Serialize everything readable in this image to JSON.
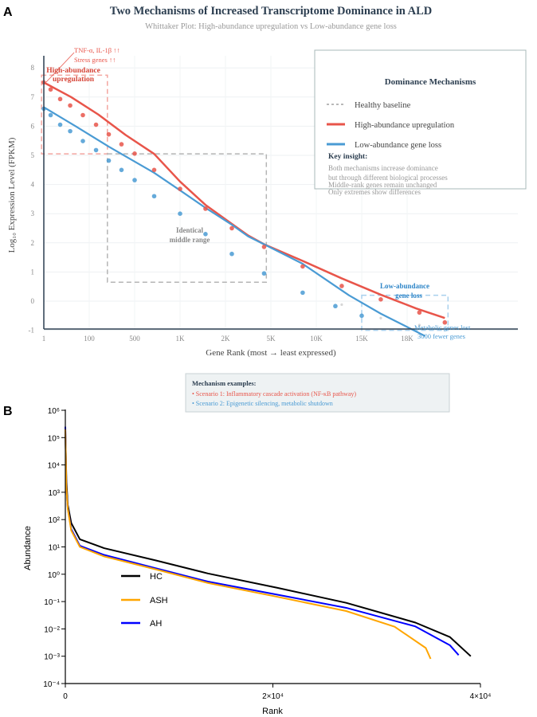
{
  "panel_labels": {
    "a": "A",
    "b": "B"
  },
  "chart_data": [
    {
      "type": "scatter",
      "title": "Two Mechanisms of Increased Transcriptome Dominance in ALD",
      "subtitle": "Whittaker Plot: High-abundance upregulation vs Low-abundance gene loss",
      "xlabel": "Gene Rank (most → least expressed)",
      "ylabel": "Log₁₀ Expression Level (FPKM)",
      "x_tick_labels": [
        "1",
        "100",
        "500",
        "1K",
        "2K",
        "5K",
        "10K",
        "15K",
        "18K"
      ],
      "y_ticks": [
        -1,
        0,
        1,
        2,
        3,
        4,
        5,
        6,
        7,
        8
      ],
      "ylim": [
        -1,
        8.6
      ],
      "grid": true,
      "legend": {
        "title": "Dominance Mechanisms",
        "placement": "top-right",
        "entries": [
          "Healthy baseline",
          "High-abundance upregulation",
          "Low-abundance gene loss"
        ],
        "insight_title": "Key insight:",
        "insight_lines": [
          "Both mechanisms increase dominance",
          "but through different biological processes",
          "Middle-rank genes remain unchanged",
          "Only extremes show differences"
        ]
      },
      "colors": {
        "upregulation": "#e8554a",
        "loss": "#4a9bd4",
        "baseline": "#a0a0a0"
      },
      "series": [
        {
          "name": "High-abundance upregulation",
          "line": [
            [
              0,
              7.5
            ],
            [
              0.6,
              7.0
            ],
            [
              1.2,
              6.4
            ],
            [
              1.8,
              5.7
            ],
            [
              2.43,
              5.05
            ],
            [
              3.0,
              4.1
            ],
            [
              3.56,
              3.3
            ],
            [
              4.14,
              2.65
            ],
            [
              4.5,
              2.25
            ],
            [
              4.85,
              1.95
            ],
            [
              5.7,
              1.38
            ],
            [
              6.56,
              0.78
            ],
            [
              7.42,
              0.22
            ],
            [
              8.2,
              -0.25
            ],
            [
              8.83,
              -0.58
            ]
          ],
          "points": [
            [
              0,
              7.5
            ],
            [
              0.15,
              7.26
            ],
            [
              0.36,
              6.93
            ],
            [
              0.58,
              6.71
            ],
            [
              0.86,
              6.38
            ],
            [
              1.15,
              6.05
            ],
            [
              1.43,
              5.72
            ],
            [
              1.71,
              5.38
            ],
            [
              2.0,
              5.06
            ],
            [
              2.43,
              4.5
            ],
            [
              3.0,
              3.85
            ],
            [
              3.56,
              3.17
            ],
            [
              4.14,
              2.5
            ],
            [
              4.85,
              1.86
            ],
            [
              5.7,
              1.19
            ],
            [
              6.56,
              0.52
            ],
            [
              7.42,
              0.06
            ],
            [
              8.27,
              -0.39
            ],
            [
              8.83,
              -0.73
            ]
          ]
        },
        {
          "name": "Low-abundance gene loss",
          "line": [
            [
              0,
              6.65
            ],
            [
              0.7,
              6.0
            ],
            [
              1.43,
              5.3
            ],
            [
              2.43,
              4.4
            ],
            [
              3.0,
              3.8
            ],
            [
              3.56,
              3.2
            ],
            [
              4.14,
              2.62
            ],
            [
              4.5,
              2.22
            ],
            [
              4.85,
              1.95
            ],
            [
              5.7,
              1.28
            ],
            [
              6.2,
              0.75
            ],
            [
              6.72,
              0.2
            ],
            [
              7.42,
              -0.43
            ],
            [
              8.4,
              -1.2
            ]
          ],
          "points": [
            [
              0,
              6.6
            ],
            [
              0.15,
              6.38
            ],
            [
              0.36,
              6.05
            ],
            [
              0.58,
              5.83
            ],
            [
              0.86,
              5.49
            ],
            [
              1.15,
              5.18
            ],
            [
              1.43,
              4.82
            ],
            [
              1.71,
              4.5
            ],
            [
              2.0,
              4.15
            ],
            [
              2.43,
              3.6
            ],
            [
              3.0,
              3.0
            ],
            [
              3.56,
              2.3
            ],
            [
              4.14,
              1.62
            ],
            [
              4.85,
              0.95
            ],
            [
              5.7,
              0.29
            ],
            [
              6.42,
              -0.17
            ],
            [
              7.0,
              -0.5
            ]
          ]
        },
        {
          "name": "Healthy baseline",
          "points": [
            [
              6.56,
              -0.12
            ],
            [
              7.42,
              -0.58
            ],
            [
              8.27,
              -0.82
            ]
          ]
        }
      ],
      "annotations": {
        "top_callout": [
          "TNF-α, IL-1β ↑↑",
          "Stress genes ↑↑"
        ],
        "high_label": [
          "High-abundance",
          "upregulation"
        ],
        "middle_label": [
          "Identical",
          "middle range"
        ],
        "low_label": [
          "Low-abundance",
          "gene loss"
        ],
        "low_callout": [
          "Metabolic genes lost",
          "3000 fewer genes"
        ]
      },
      "examples_box": {
        "title": "Mechanism examples:",
        "lines": [
          "• Scenario 1: Inflammatory cascade activation (NF-κB pathway)",
          "• Scenario 2: Epigenetic silencing, metabolic shutdown"
        ]
      }
    },
    {
      "type": "line",
      "xlabel": "Rank",
      "ylabel": "Abundance",
      "x_ticks": [
        0,
        20000,
        40000
      ],
      "x_tick_labels": [
        "0",
        "2×10⁴",
        "4×10⁴"
      ],
      "y_scale": "log",
      "ylim": [
        0.0001,
        1000000
      ],
      "y_tick_labels": [
        "10⁻⁴",
        "10⁻³",
        "10⁻²",
        "10⁻¹",
        "10⁰",
        "10¹",
        "10²",
        "10³",
        "10⁴",
        "10⁵",
        "10⁶"
      ],
      "grid": false,
      "legend": {
        "placement": "middle-left"
      },
      "series": [
        {
          "name": "HC",
          "color": "#000000",
          "points": [
            [
              0,
              180000
            ],
            [
              100,
              3000
            ],
            [
              233,
              350
            ],
            [
              567,
              75
            ],
            [
              1400,
              19
            ],
            [
              3733,
              9
            ],
            [
              8733,
              3.2
            ],
            [
              13733,
              1.07
            ],
            [
              20400,
              0.32
            ],
            [
              27067,
              0.09
            ],
            [
              33733,
              0.017
            ],
            [
              37067,
              0.005
            ],
            [
              39067,
              0.001
            ]
          ]
        },
        {
          "name": "ASH",
          "color": "#ffa500",
          "points": [
            [
              0,
              200000
            ],
            [
              100,
              1500
            ],
            [
              233,
              250
            ],
            [
              567,
              40
            ],
            [
              1400,
              10
            ],
            [
              3733,
              4.5
            ],
            [
              8733,
              1.5
            ],
            [
              13733,
              0.48
            ],
            [
              20400,
              0.15
            ],
            [
              27067,
              0.045
            ],
            [
              31733,
              0.012
            ],
            [
              34733,
              0.002
            ],
            [
              35200,
              0.0008
            ]
          ]
        },
        {
          "name": "AH",
          "color": "#0000ff",
          "points": [
            [
              0,
              250000
            ],
            [
              100,
              1500
            ],
            [
              233,
              260
            ],
            [
              567,
              45
            ],
            [
              1400,
              11
            ],
            [
              3733,
              5.1
            ],
            [
              8733,
              1.65
            ],
            [
              13733,
              0.54
            ],
            [
              20400,
              0.18
            ],
            [
              27067,
              0.059
            ],
            [
              33733,
              0.0123
            ],
            [
              37067,
              0.0025
            ],
            [
              37900,
              0.0011
            ]
          ]
        }
      ]
    }
  ]
}
